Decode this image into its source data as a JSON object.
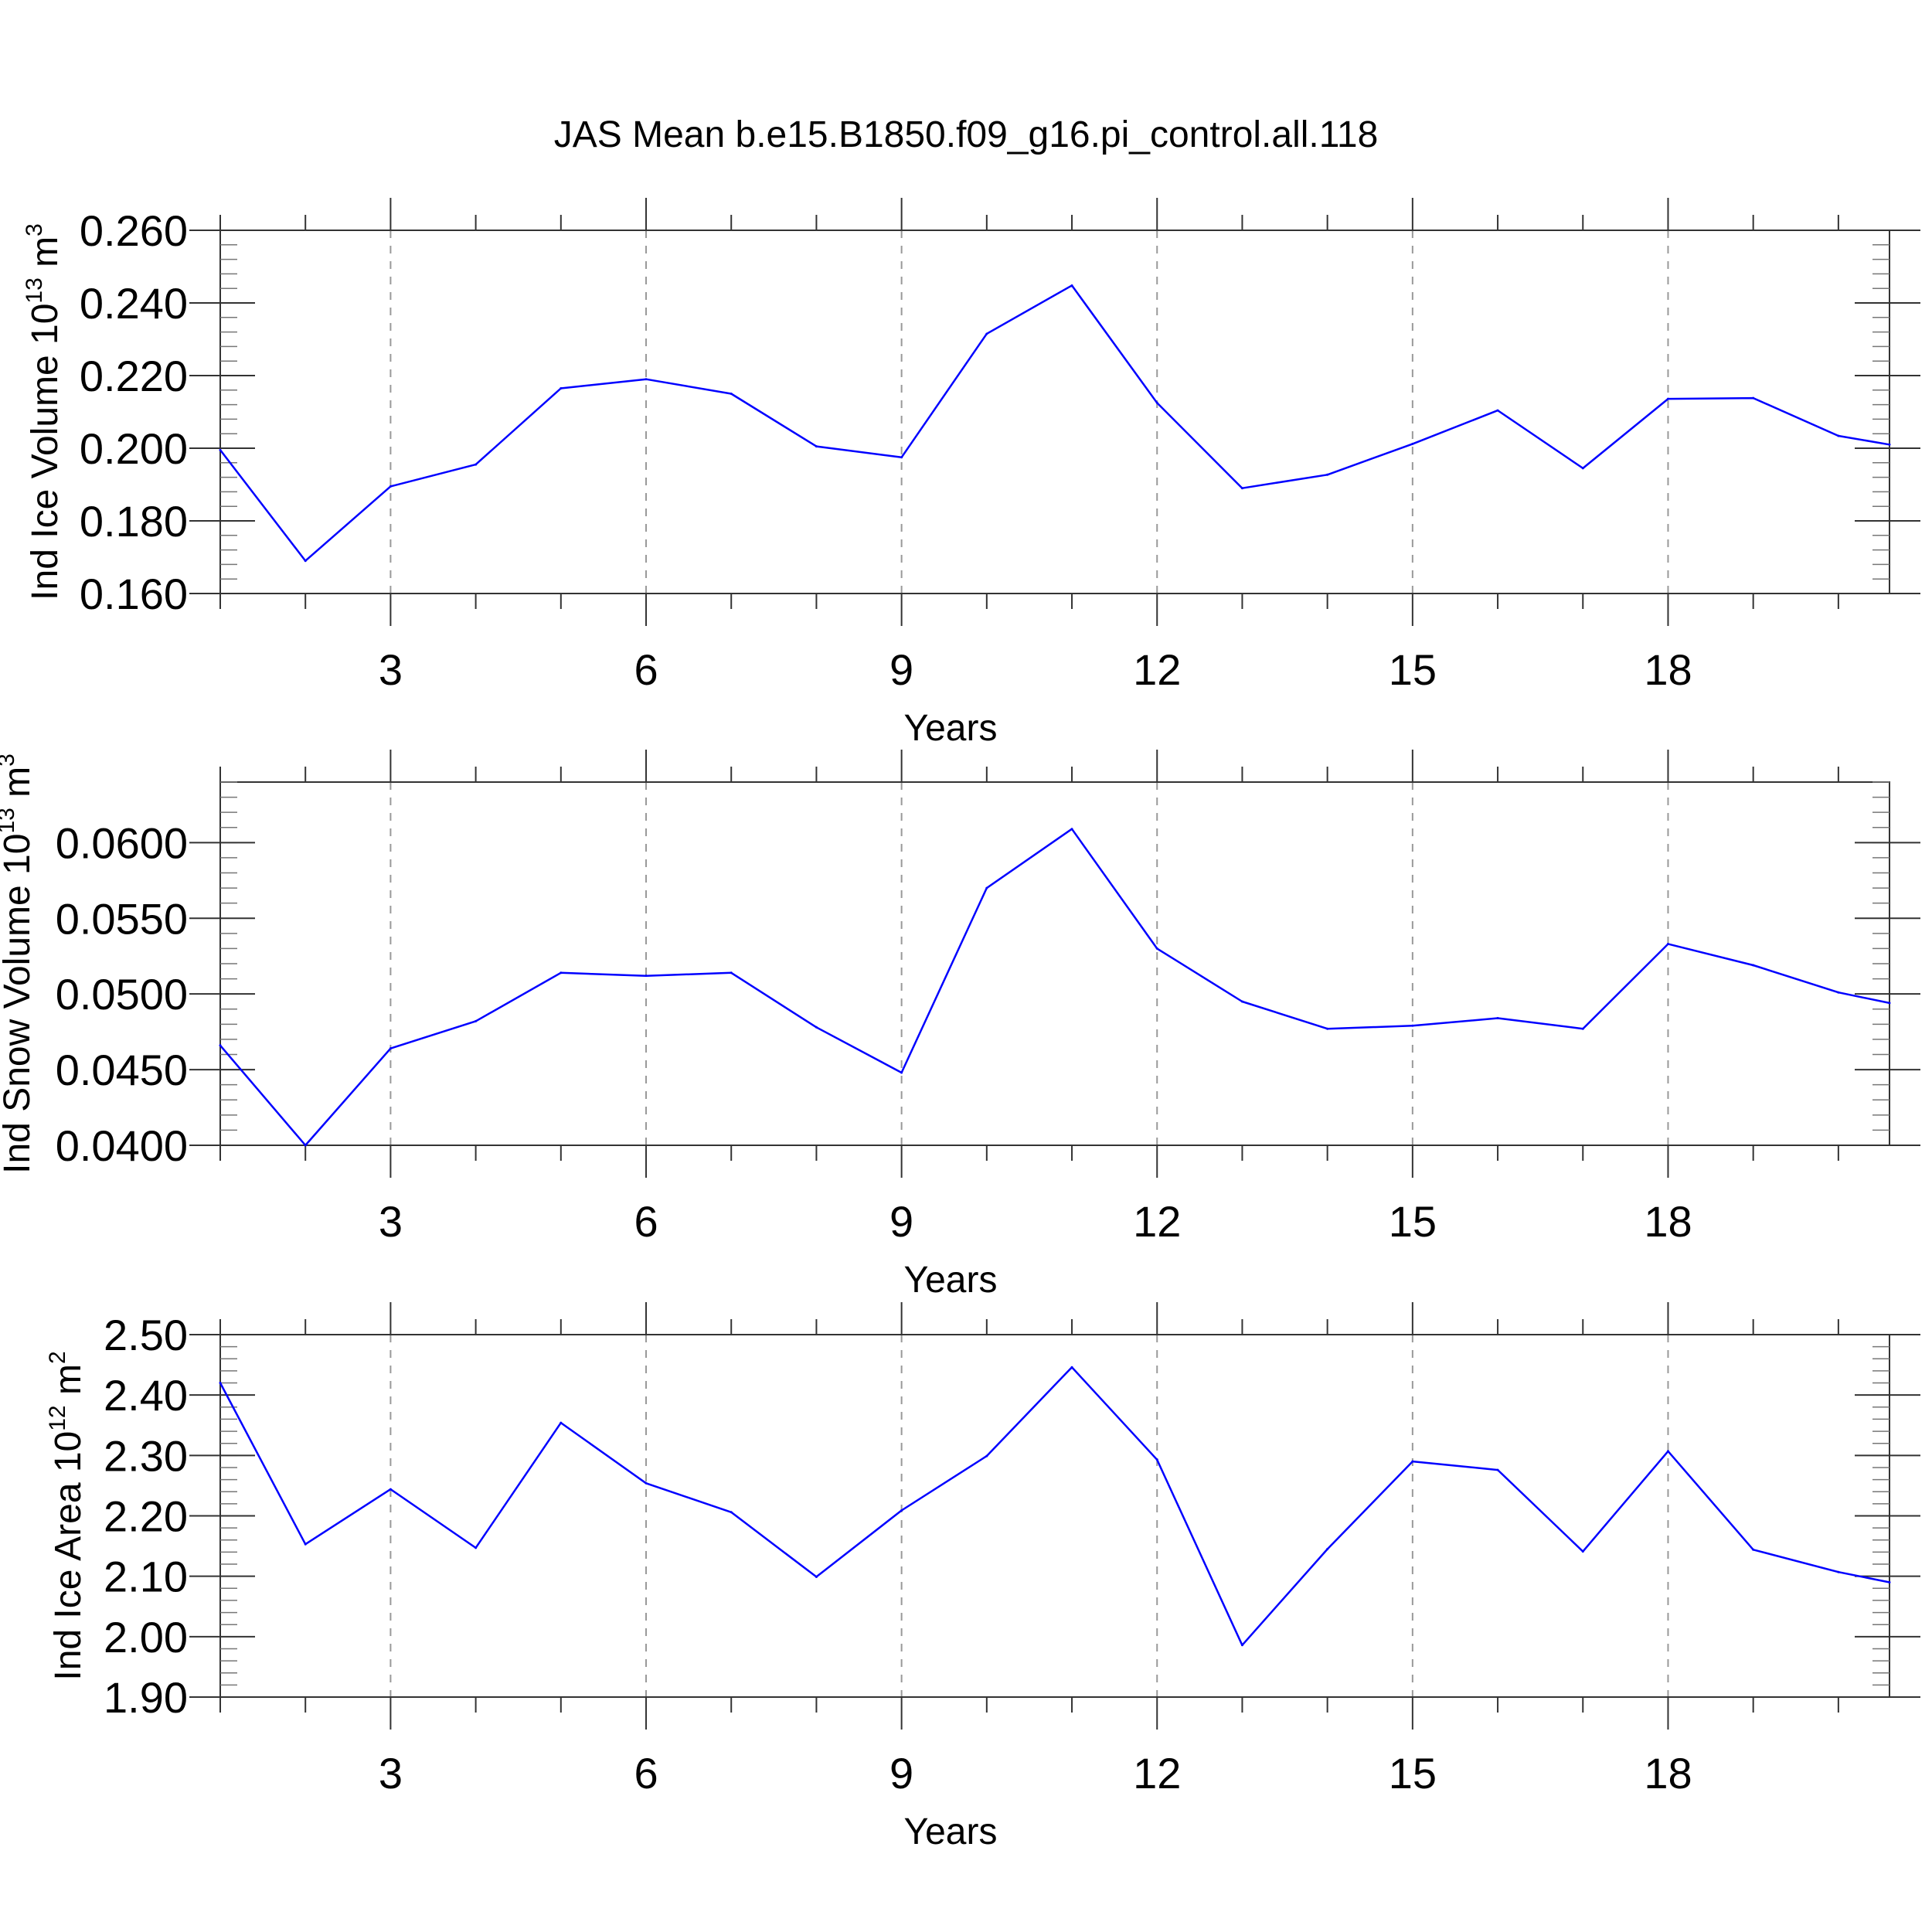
{
  "figure": {
    "title": "JAS Mean b.e15.B1850.f09_g16.pi_control.all.118",
    "series_color": "#0000ff"
  },
  "chart_data": [
    {
      "type": "line",
      "id": "ice-volume",
      "ylabel": "Ind Ice Volume 10",
      "ylabel_exp": "13",
      "ylabel_unit": " m",
      "ylabel_unit_exp": "3",
      "xlabel": "Years",
      "xlim": [
        1,
        20.6
      ],
      "ylim": [
        0.16,
        0.26
      ],
      "xticks": [
        3,
        6,
        9,
        12,
        15,
        18
      ],
      "yticks": [
        0.16,
        0.18,
        0.2,
        0.22,
        0.24,
        0.26
      ],
      "ytick_labels": [
        "0.160",
        "0.180",
        "0.200",
        "0.220",
        "0.240",
        "0.260"
      ],
      "x": [
        1,
        2,
        3,
        4,
        5,
        6,
        7,
        8,
        9,
        10,
        11,
        12,
        13,
        14,
        15,
        16,
        17,
        18,
        19,
        20,
        20.6
      ],
      "values": [
        0.1995,
        0.169,
        0.1895,
        0.1955,
        0.2165,
        0.219,
        0.215,
        0.2005,
        0.1975,
        0.2315,
        0.2448,
        0.2125,
        0.189,
        0.1927,
        0.2012,
        0.2104,
        0.1945,
        0.2136,
        0.2138,
        0.2034,
        0.201
      ]
    },
    {
      "type": "line",
      "id": "snow-volume",
      "ylabel": "Ind Snow Volume 10",
      "ylabel_exp": "13",
      "ylabel_unit": " m",
      "ylabel_unit_exp": "3",
      "xlabel": "Years",
      "xlim": [
        1,
        20.6
      ],
      "ylim": [
        0.04,
        0.064
      ],
      "xticks": [
        3,
        6,
        9,
        12,
        15,
        18
      ],
      "yticks": [
        0.04,
        0.045,
        0.05,
        0.055,
        0.06
      ],
      "ytick_labels": [
        "0.0400",
        "0.0450",
        "0.0500",
        "0.0550",
        "0.0600"
      ],
      "x": [
        1,
        2,
        3,
        4,
        5,
        6,
        7,
        8,
        9,
        10,
        11,
        12,
        13,
        14,
        15,
        16,
        17,
        18,
        19,
        20,
        20.6
      ],
      "values": [
        0.0466,
        0.04,
        0.0464,
        0.0482,
        0.0514,
        0.0512,
        0.0514,
        0.0478,
        0.0448,
        0.057,
        0.0609,
        0.053,
        0.0495,
        0.0477,
        0.0479,
        0.0484,
        0.0477,
        0.0533,
        0.0519,
        0.0501,
        0.0494
      ]
    },
    {
      "type": "line",
      "id": "ice-area",
      "ylabel": "Ind Ice Area 10",
      "ylabel_exp": "12",
      "ylabel_unit": " m",
      "ylabel_unit_exp": "2",
      "xlabel": "Years",
      "xlim": [
        1,
        20.6
      ],
      "ylim": [
        1.9,
        2.5
      ],
      "xticks": [
        3,
        6,
        9,
        12,
        15,
        18
      ],
      "yticks": [
        1.9,
        2.0,
        2.1,
        2.2,
        2.3,
        2.4,
        2.5
      ],
      "ytick_labels": [
        "1.90",
        "2.00",
        "2.10",
        "2.20",
        "2.30",
        "2.40",
        "2.50"
      ],
      "x": [
        1,
        2,
        3,
        4,
        5,
        6,
        7,
        8,
        9,
        10,
        11,
        12,
        13,
        14,
        15,
        16,
        17,
        18,
        19,
        20,
        20.6
      ],
      "values": [
        2.42,
        2.153,
        2.244,
        2.147,
        2.354,
        2.254,
        2.206,
        2.099,
        2.209,
        2.299,
        2.446,
        2.293,
        1.986,
        2.145,
        2.29,
        2.276,
        2.141,
        2.307,
        2.144,
        2.107,
        2.09
      ]
    }
  ]
}
